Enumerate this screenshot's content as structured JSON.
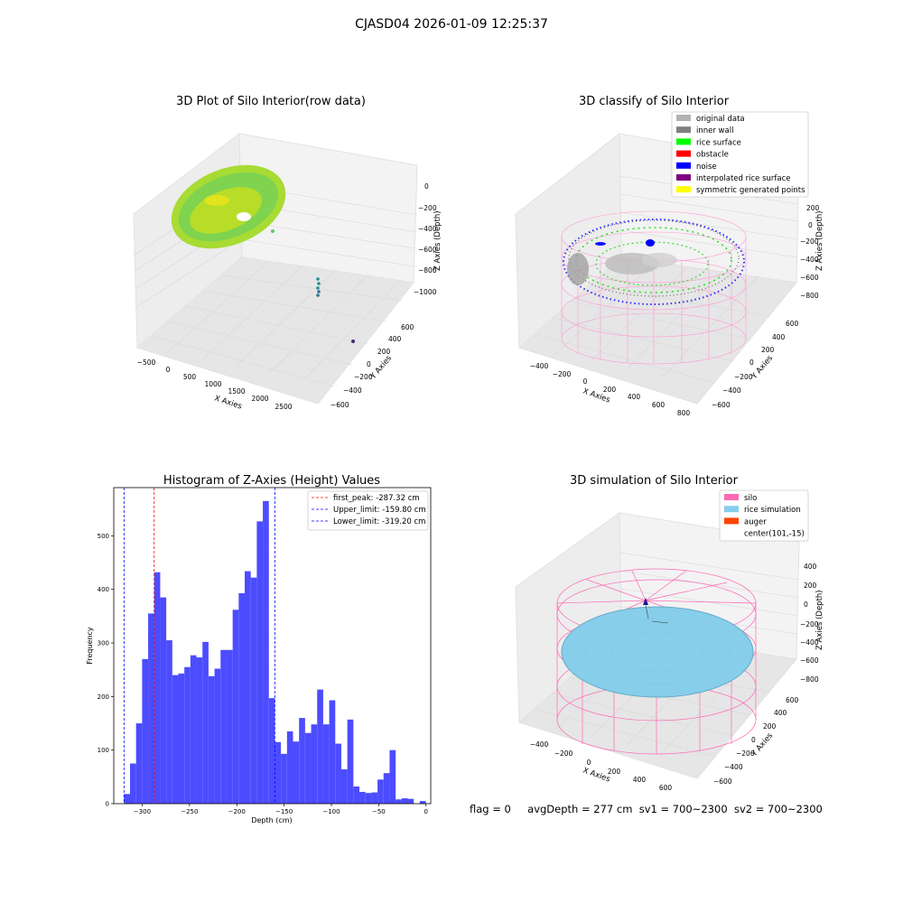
{
  "suptitle": "CJASD04 2026-01-09 12:25:37",
  "footer": {
    "flag": "flag = 0",
    "avg": "avgDepth = 277 cm",
    "sv1": "sv1 = 700~2300",
    "sv2": "sv2 = 700~2300"
  },
  "chart_data": [
    {
      "type": "scatter",
      "title": "3D Plot of Silo Interior(row data)",
      "xlabel": "X Axies",
      "ylabel": "Y Axies",
      "zlabel": "Z Axies (Depth)",
      "x_ticks": [
        "−500",
        "0",
        "500",
        "1000",
        "1500",
        "2000",
        "2500"
      ],
      "y_ticks": [
        "−600",
        "−400",
        "−200",
        "0",
        "200",
        "400",
        "600"
      ],
      "z_ticks": [
        "0",
        "−200",
        "−400",
        "−600",
        "−800",
        "−1000"
      ],
      "colormap": [
        "#3b528b",
        "#21918c",
        "#5ec962",
        "#fde725"
      ]
    },
    {
      "type": "scatter",
      "title": "3D classify of Silo Interior",
      "xlabel": "X Axies",
      "ylabel": "Y Axies",
      "zlabel": "Z Axies (Depth)",
      "x_ticks": [
        "−400",
        "−200",
        "0",
        "200",
        "400",
        "600",
        "800"
      ],
      "y_ticks": [
        "−600",
        "−400",
        "−200",
        "0",
        "200",
        "400",
        "600"
      ],
      "z_ticks": [
        "200",
        "0",
        "−200",
        "−400",
        "−600",
        "−800"
      ],
      "legend": [
        {
          "label": "original data",
          "color": "#b3b3b3"
        },
        {
          "label": "inner wall",
          "color": "#808080"
        },
        {
          "label": "rice surface",
          "color": "#00ff00"
        },
        {
          "label": "obstacle",
          "color": "#ff0000"
        },
        {
          "label": "noise",
          "color": "#0000ff"
        },
        {
          "label": "interpolated rice surface",
          "color": "#800080"
        },
        {
          "label": "symmetric generated points",
          "color": "#ffff00"
        }
      ],
      "z_extra_label": "0"
    },
    {
      "type": "bar",
      "title": "Histogram of Z-Axies (Height) Values",
      "xlabel": "Depth (cm)",
      "ylabel": "Frequency",
      "xlim": [
        -330,
        5
      ],
      "ylim": [
        0,
        590
      ],
      "x_ticks": [
        -300,
        -250,
        -200,
        -150,
        -100,
        -50,
        0
      ],
      "y_ticks": [
        0,
        100,
        200,
        300,
        400,
        500
      ],
      "bar_color": "#4c4cff",
      "bin_start": -319.2,
      "bin_width": 6.38,
      "values": [
        18,
        75,
        150,
        270,
        355,
        432,
        385,
        305,
        240,
        243,
        255,
        277,
        273,
        302,
        238,
        252,
        287,
        287,
        362,
        393,
        434,
        422,
        527,
        565,
        197,
        115,
        93,
        135,
        116,
        160,
        132,
        148,
        213,
        148,
        193,
        112,
        64,
        157,
        32,
        22,
        20,
        21,
        45,
        57,
        100,
        8,
        10,
        9,
        0,
        5
      ],
      "vlines": [
        {
          "label": "first_peak: -287.32 cm",
          "x": -287.32,
          "color": "#ff0000"
        },
        {
          "label": "Upper_limit: -159.80 cm",
          "x": -159.8,
          "color": "#0000ff"
        },
        {
          "label": "Lower_limit: -319.20 cm",
          "x": -319.2,
          "color": "#0000ff"
        }
      ]
    },
    {
      "type": "scatter",
      "title": "3D simulation of Silo Interior",
      "xlabel": "X Axies",
      "ylabel": "Y Axies",
      "zlabel": "Z Axies (Depth)",
      "x_ticks": [
        "−400",
        "−200",
        "0",
        "200",
        "400",
        "600"
      ],
      "y_ticks": [
        "−600",
        "−400",
        "−200",
        "0",
        "200",
        "400",
        "600"
      ],
      "z_ticks": [
        "400",
        "200",
        "0",
        "−200",
        "−400",
        "−600",
        "−800"
      ],
      "legend": [
        {
          "label": "silo",
          "color": "#ff69b4"
        },
        {
          "label": "rice simulation",
          "color": "#87ceeb"
        },
        {
          "label": "auger",
          "color": "#ff4500"
        },
        {
          "label": "center(101,-15)",
          "color": "none"
        }
      ]
    }
  ]
}
